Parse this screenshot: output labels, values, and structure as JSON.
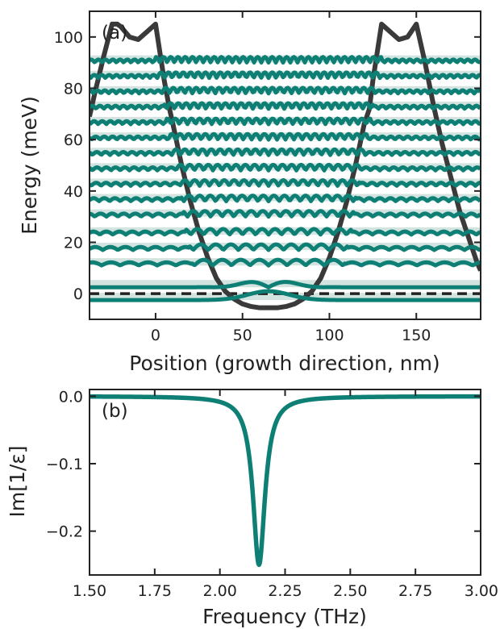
{
  "colors": {
    "teal": "#0e7f74",
    "band": "#c3d9d6",
    "potential": "#3a3a3a",
    "axis": "#222222"
  },
  "chart_data": [
    {
      "type": "line",
      "panel_label": "(a)",
      "xlabel": "Position (growth direction, nm)",
      "ylabel": "Energy (meV)",
      "xlim": [
        -38,
        187
      ],
      "ylim": [
        -10,
        110
      ],
      "xticks": [
        0,
        50,
        100,
        150
      ],
      "xtick_labels": [
        "0",
        "50",
        "100",
        "150"
      ],
      "yticks": [
        0,
        20,
        40,
        60,
        80,
        100
      ],
      "ytick_labels": [
        "0",
        "20",
        "40",
        "60",
        "80",
        "100"
      ],
      "grid": false,
      "potential_profile": {
        "x": [
          -38,
          -35,
          -30,
          -25,
          -22,
          -20,
          -15,
          -10,
          -5,
          0,
          5,
          8,
          10,
          15,
          20,
          25,
          30,
          35,
          40,
          45,
          50,
          55,
          60,
          65,
          70,
          75,
          80,
          85,
          90,
          95,
          100,
          105,
          110,
          115,
          120,
          123,
          125,
          130,
          135,
          140,
          145,
          150,
          152,
          155,
          160,
          165,
          170,
          175,
          180,
          185,
          187
        ],
        "energy": [
          69,
          78,
          92,
          105,
          105,
          104,
          100,
          99,
          102,
          105,
          83,
          72,
          66,
          50,
          36,
          24,
          14,
          6,
          1,
          -2,
          -4,
          -5,
          -5.5,
          -5.5,
          -5.5,
          -5,
          -4,
          -2,
          1,
          6,
          14,
          24,
          36,
          50,
          66,
          72,
          83,
          105,
          102,
          99,
          100,
          105,
          99,
          90,
          73,
          58,
          45,
          32,
          22,
          12,
          9
        ]
      },
      "reference_line_energy": 0,
      "wavefunction_levels_meV": [
        -2.5,
        2.5,
        11,
        17,
        23,
        30,
        36,
        42,
        48,
        54,
        60,
        66,
        72,
        78,
        84,
        90
      ],
      "wavefunction_color": "#0e7f74"
    },
    {
      "type": "line",
      "panel_label": "(b)",
      "xlabel": "Frequency (THz)",
      "ylabel": "Im[1/ε]",
      "xlim": [
        1.5,
        3.0
      ],
      "ylim": [
        -0.265,
        0.01
      ],
      "xticks": [
        1.5,
        1.75,
        2.0,
        2.25,
        2.5,
        2.75,
        3.0
      ],
      "xtick_labels": [
        "1.50",
        "1.75",
        "2.00",
        "2.25",
        "2.50",
        "2.75",
        "3.00"
      ],
      "yticks": [
        0.0,
        -0.1,
        -0.2
      ],
      "ytick_labels": [
        "0.0",
        "−0.1",
        "−0.2"
      ],
      "grid": false,
      "series": [
        {
          "resonance_center_THz": 2.15,
          "resonance_width_THz": 0.028,
          "minimum_value": -0.25,
          "color": "#0e7f74"
        }
      ]
    }
  ]
}
